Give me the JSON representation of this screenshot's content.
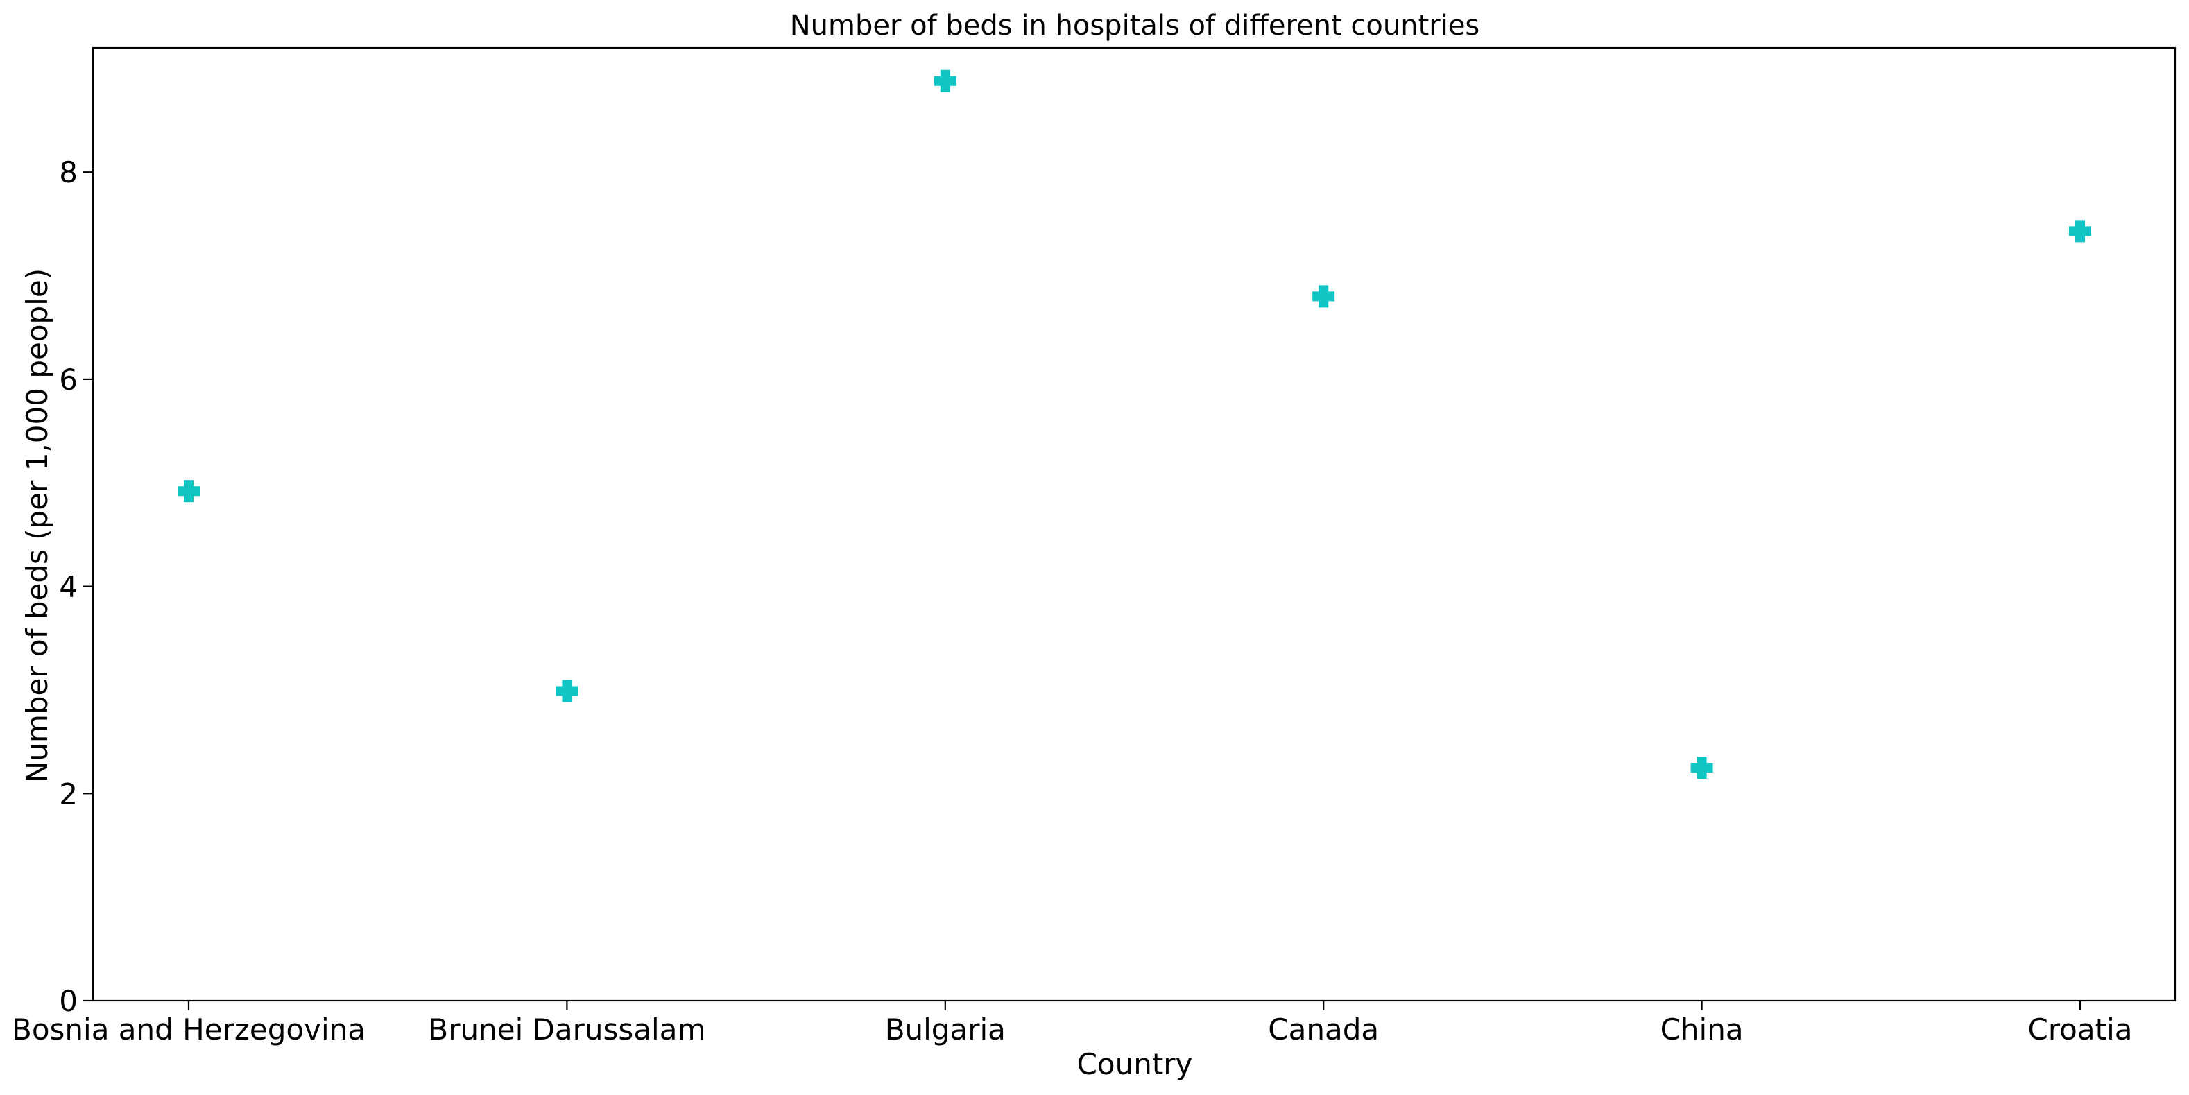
{
  "chart_data": {
    "type": "scatter",
    "title": "Number of beds in hospitals of different countries",
    "xlabel": "Country",
    "ylabel": "Number of beds (per 1,000 people)",
    "categories": [
      "Bosnia and Herzegovina",
      "Brunei Darussalam",
      "Bulgaria",
      "Canada",
      "China",
      "Croatia"
    ],
    "series": [
      {
        "values": [
          4.92,
          2.99,
          8.88,
          6.8,
          2.25,
          7.43
        ]
      }
    ],
    "yticks": [
      0,
      2,
      4,
      6,
      8
    ],
    "ylim": [
      0,
      9.2
    ],
    "marker": "plus-filled",
    "grid": false,
    "colors": {
      "marker": "#17becf",
      "marker_fill": "#10c4c4",
      "axes": "#000000",
      "background": "#ffffff"
    }
  }
}
